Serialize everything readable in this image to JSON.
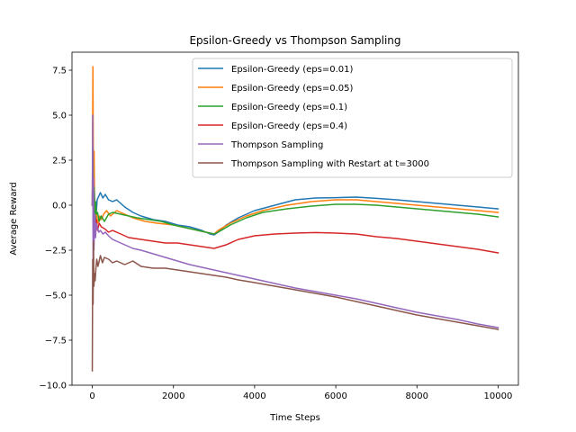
{
  "chart_data": {
    "type": "line",
    "title": "Epsilon-Greedy vs Thompson Sampling",
    "xlabel": "Time Steps",
    "ylabel": "Average Reward",
    "xlim": [
      -500,
      10500
    ],
    "ylim": [
      -10.0,
      8.5
    ],
    "xticks": [
      0,
      2000,
      4000,
      6000,
      8000,
      10000
    ],
    "xtick_labels": [
      "0",
      "2000",
      "4000",
      "6000",
      "8000",
      "10000"
    ],
    "yticks": [
      -10.0,
      -7.5,
      -5.0,
      -2.5,
      0.0,
      2.5,
      5.0,
      7.5
    ],
    "ytick_labels": [
      "−10.0",
      "−7.5",
      "−5.0",
      "−2.5",
      "0.0",
      "2.5",
      "5.0",
      "7.5"
    ],
    "grid": false,
    "legend_position": "top-right",
    "series": [
      {
        "name": "Epsilon-Greedy (eps=0.01)",
        "color": "#1f77b4",
        "x": [
          0,
          15,
          30,
          50,
          80,
          120,
          160,
          200,
          260,
          320,
          400,
          500,
          600,
          800,
          1000,
          1200,
          1500,
          1800,
          2100,
          2400,
          2700,
          2900,
          3000,
          3100,
          3300,
          3600,
          4000,
          4500,
          5000,
          5500,
          6000,
          6500,
          7000,
          7500,
          8000,
          8500,
          9000,
          9500,
          10000
        ],
        "y": [
          0.5,
          1.5,
          -0.5,
          0.8,
          -1.0,
          0.3,
          0.5,
          0.7,
          0.4,
          0.6,
          0.3,
          0.2,
          0.3,
          -0.1,
          -0.4,
          -0.6,
          -0.8,
          -0.9,
          -1.1,
          -1.2,
          -1.4,
          -1.6,
          -1.65,
          -1.5,
          -1.1,
          -0.7,
          -0.3,
          0.0,
          0.3,
          0.4,
          0.42,
          0.45,
          0.38,
          0.3,
          0.2,
          0.1,
          0.0,
          -0.1,
          -0.2
        ]
      },
      {
        "name": "Epsilon-Greedy (eps=0.05)",
        "color": "#ff7f0e",
        "x": [
          0,
          15,
          30,
          45,
          60,
          80,
          100,
          140,
          180,
          220,
          280,
          350,
          450,
          600,
          800,
          1000,
          1300,
          1600,
          2000,
          2400,
          2800,
          3000,
          3100,
          3400,
          3800,
          4200,
          4800,
          5400,
          6000,
          6500,
          7000,
          7500,
          8000,
          8500,
          9000,
          9500,
          10000
        ],
        "y": [
          0.0,
          7.7,
          1.0,
          3.0,
          -1.0,
          0.0,
          -0.5,
          -1.0,
          -0.6,
          -0.8,
          -0.5,
          -0.3,
          -0.6,
          -0.3,
          -0.5,
          -0.7,
          -0.9,
          -1.0,
          -1.1,
          -1.3,
          -1.5,
          -1.6,
          -1.4,
          -1.0,
          -0.6,
          -0.3,
          0.0,
          0.2,
          0.3,
          0.3,
          0.2,
          0.1,
          0.0,
          -0.1,
          -0.2,
          -0.3,
          -0.4
        ]
      },
      {
        "name": "Epsilon-Greedy (eps=0.1)",
        "color": "#2ca02c",
        "x": [
          0,
          15,
          30,
          45,
          60,
          80,
          100,
          130,
          170,
          220,
          300,
          400,
          500,
          700,
          900,
          1100,
          1400,
          1700,
          2000,
          2400,
          2800,
          3000,
          3100,
          3400,
          3800,
          4200,
          4800,
          5400,
          6000,
          6500,
          7000,
          7500,
          8000,
          8500,
          9000,
          9500,
          10000
        ],
        "y": [
          0.0,
          3.2,
          -0.5,
          1.0,
          -0.8,
          0.2,
          -0.5,
          -0.4,
          -0.9,
          -0.6,
          -0.9,
          -0.5,
          -0.4,
          -0.5,
          -0.6,
          -0.7,
          -0.8,
          -0.9,
          -1.1,
          -1.3,
          -1.5,
          -1.6,
          -1.5,
          -1.1,
          -0.7,
          -0.4,
          -0.2,
          -0.05,
          0.05,
          0.05,
          0.0,
          -0.1,
          -0.2,
          -0.3,
          -0.4,
          -0.5,
          -0.65
        ]
      },
      {
        "name": "Epsilon-Greedy (eps=0.4)",
        "color": "#d62728",
        "x": [
          0,
          15,
          30,
          45,
          60,
          80,
          100,
          130,
          170,
          220,
          300,
          400,
          500,
          700,
          900,
          1200,
          1500,
          1800,
          2100,
          2400,
          2700,
          3000,
          3300,
          3600,
          4000,
          4500,
          5000,
          5500,
          6000,
          6500,
          7000,
          7500,
          8000,
          8500,
          9000,
          9500,
          10000
        ],
        "y": [
          0.0,
          1.2,
          -2.5,
          -0.5,
          -1.8,
          -1.2,
          -0.8,
          -1.4,
          -1.0,
          -1.2,
          -1.3,
          -1.5,
          -1.4,
          -1.6,
          -1.8,
          -1.9,
          -2.0,
          -2.1,
          -2.1,
          -2.2,
          -2.3,
          -2.4,
          -2.2,
          -1.9,
          -1.7,
          -1.6,
          -1.55,
          -1.52,
          -1.55,
          -1.6,
          -1.75,
          -1.85,
          -2.0,
          -2.15,
          -2.3,
          -2.45,
          -2.65
        ]
      },
      {
        "name": "Thompson Sampling",
        "color": "#9467bd",
        "x": [
          0,
          10,
          20,
          30,
          40,
          60,
          80,
          100,
          130,
          160,
          200,
          260,
          320,
          400,
          500,
          600,
          800,
          1000,
          1200,
          1500,
          1800,
          2100,
          2400,
          2700,
          3000,
          3300,
          3600,
          4000,
          4500,
          5000,
          5500,
          6000,
          6500,
          7000,
          7500,
          8000,
          8500,
          9000,
          9500,
          10000
        ],
        "y": [
          0.0,
          5.0,
          -3.0,
          1.5,
          -2.5,
          -0.5,
          -1.8,
          -1.0,
          -1.3,
          -1.5,
          -1.4,
          -1.6,
          -1.5,
          -1.7,
          -1.9,
          -2.0,
          -2.2,
          -2.4,
          -2.5,
          -2.7,
          -2.9,
          -3.1,
          -3.3,
          -3.45,
          -3.6,
          -3.75,
          -3.9,
          -4.1,
          -4.35,
          -4.6,
          -4.8,
          -5.0,
          -5.2,
          -5.45,
          -5.7,
          -5.95,
          -6.15,
          -6.35,
          -6.6,
          -6.8
        ]
      },
      {
        "name": "Thompson Sampling with Restart at t=3000",
        "color": "#8c564b",
        "x": [
          0,
          10,
          20,
          30,
          40,
          55,
          70,
          90,
          110,
          140,
          170,
          200,
          250,
          300,
          400,
          500,
          600,
          800,
          1000,
          1200,
          1500,
          1800,
          2100,
          2400,
          2700,
          3000,
          3300,
          3600,
          4000,
          4500,
          5000,
          5500,
          6000,
          6500,
          7000,
          7500,
          8000,
          8500,
          9000,
          9500,
          10000
        ],
        "y": [
          -9.2,
          -3.0,
          -5.5,
          -2.0,
          -4.5,
          -3.8,
          -4.2,
          -3.5,
          -3.0,
          -3.4,
          -3.1,
          -2.8,
          -3.2,
          -2.9,
          -3.0,
          -3.2,
          -3.1,
          -3.3,
          -3.1,
          -3.4,
          -3.5,
          -3.5,
          -3.6,
          -3.7,
          -3.8,
          -3.9,
          -4.0,
          -4.15,
          -4.3,
          -4.5,
          -4.7,
          -4.9,
          -5.1,
          -5.35,
          -5.6,
          -5.85,
          -6.1,
          -6.3,
          -6.5,
          -6.7,
          -6.9
        ]
      }
    ]
  }
}
